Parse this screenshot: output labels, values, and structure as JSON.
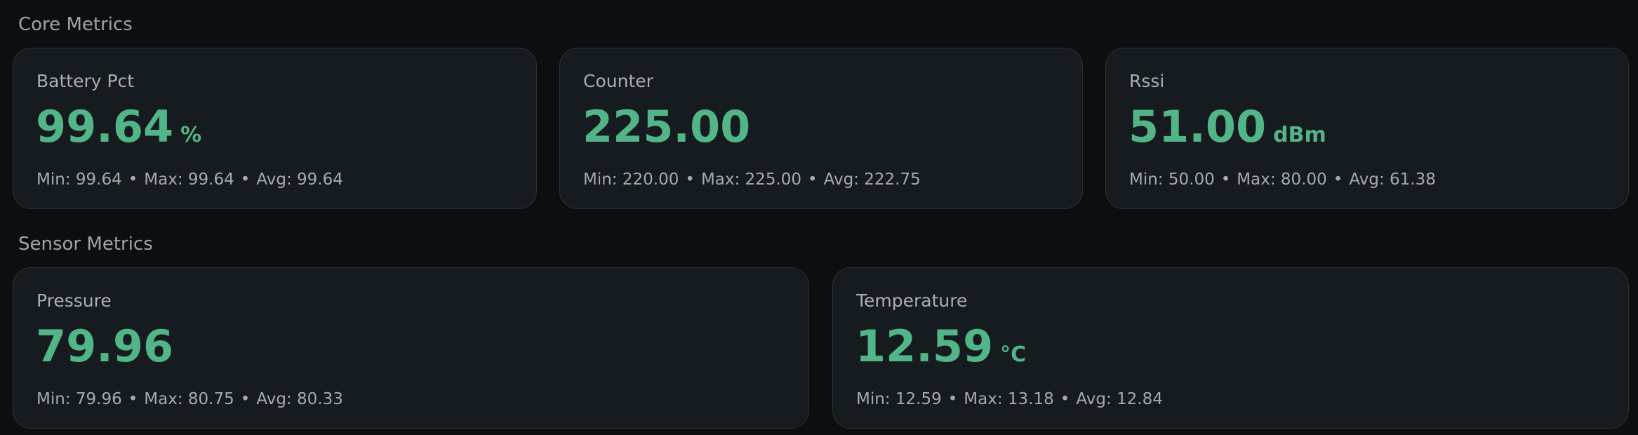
{
  "sections": [
    {
      "title": "Core Metrics",
      "cards": [
        {
          "label": "Battery Pct",
          "value": "99.64",
          "unit": "%",
          "min": "Min: 99.64",
          "max": "Max: 99.64",
          "avg": "Avg: 99.64"
        },
        {
          "label": "Counter",
          "value": "225.00",
          "unit": "",
          "min": "Min: 220.00",
          "max": "Max: 225.00",
          "avg": "Avg: 222.75"
        },
        {
          "label": "Rssi",
          "value": "51.00",
          "unit": "dBm",
          "min": "Min: 50.00",
          "max": "Max: 80.00",
          "avg": "Avg: 61.38"
        }
      ]
    },
    {
      "title": "Sensor Metrics",
      "cards": [
        {
          "label": "Pressure",
          "value": "79.96",
          "unit": "",
          "min": "Min: 79.96",
          "max": "Max: 80.75",
          "avg": "Avg: 80.33"
        },
        {
          "label": "Temperature",
          "value": "12.59",
          "unit": "°C",
          "min": "Min: 12.59",
          "max": "Max: 13.18",
          "avg": "Avg: 12.84"
        }
      ]
    }
  ],
  "separator": "•",
  "colors": {
    "background": "#0c0e11",
    "card": "#161b1f",
    "card_border": "#2b3237",
    "accent": "#52b587",
    "muted_text": "#a5aaae"
  }
}
